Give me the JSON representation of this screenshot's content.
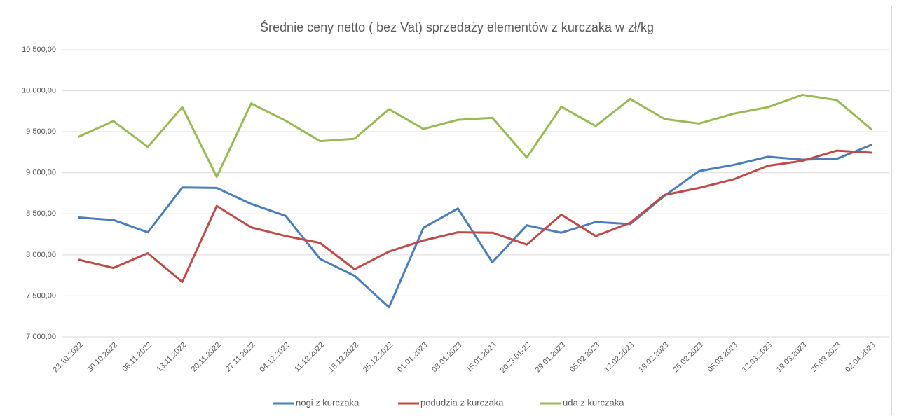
{
  "chart_data": {
    "type": "line",
    "title": "Średnie ceny netto ( bez Vat) sprzedaży elementów z kurczaka w zł/kg",
    "categories": [
      "23.10.2022",
      "30.10.2022",
      "06.11.2022",
      "13.11.2022",
      "20.11.2022",
      "27.11.2022",
      "04.12.2022",
      "11.12.2022",
      "18.12.2022",
      "25.12.2022",
      "01.01.2023",
      "08.01.2023",
      "15.01.2023",
      "2023-01-22",
      "29.01.2023",
      "05.02.2023",
      "12.02.2023",
      "19.02.2023",
      "26.02.2023",
      "05.03.2023",
      "12.03.2023",
      "19.03.2023",
      "26.03.2023",
      "02.04.2023"
    ],
    "series": [
      {
        "name": "nogi z kurczaka",
        "color": "#4a7ebb",
        "values": [
          8455,
          8425,
          8275,
          8820,
          8815,
          8620,
          8475,
          7950,
          7745,
          7360,
          8330,
          8565,
          7910,
          8360,
          8270,
          8400,
          8375,
          8720,
          9020,
          9095,
          9195,
          9160,
          9170,
          9340
        ]
      },
      {
        "name": "podudzia z kurczaka",
        "color": "#be4b48",
        "values": [
          7940,
          7840,
          8020,
          7670,
          8595,
          8335,
          8230,
          8145,
          7825,
          8040,
          8175,
          8275,
          8270,
          8125,
          8490,
          8230,
          8390,
          8730,
          8815,
          8920,
          9085,
          9145,
          9270,
          9245
        ]
      },
      {
        "name": "uda z kurczaka",
        "color": "#98b954",
        "values": [
          9440,
          9630,
          9315,
          9800,
          8950,
          9845,
          9635,
          9385,
          9415,
          9775,
          9535,
          9645,
          9670,
          9185,
          9805,
          9570,
          9900,
          9655,
          9600,
          9720,
          9800,
          9950,
          9885,
          9530
        ]
      }
    ],
    "ylim": [
      7000,
      10500
    ],
    "yticks": [
      {
        "value": 7000,
        "label": "7 000,00"
      },
      {
        "value": 7500,
        "label": "7 500,00"
      },
      {
        "value": 8000,
        "label": "8 000,00"
      },
      {
        "value": 8500,
        "label": "8 500,00"
      },
      {
        "value": 9000,
        "label": "9 000,00"
      },
      {
        "value": 9500,
        "label": "9 500,00"
      },
      {
        "value": 10000,
        "label": "10 000,00"
      },
      {
        "value": 10500,
        "label": "10 500,00"
      }
    ],
    "grid": true,
    "legend": "bottom"
  }
}
